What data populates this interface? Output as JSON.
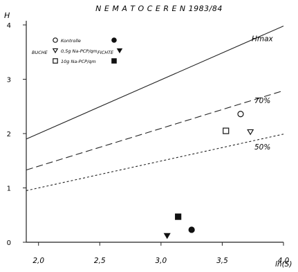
{
  "chart_data": {
    "type": "scatter",
    "title": "N E M A T O C E R E N   1983/84",
    "ylabel": "H",
    "xlabel": "ln(S)",
    "xlim": [
      1.9,
      4.0
    ],
    "ylim": [
      0,
      4.0
    ],
    "x_ticks": [
      2.0,
      2.5,
      3.0,
      3.5,
      4.0
    ],
    "x_tick_labels": [
      "2,0",
      "2,5",
      "3,0",
      "3,5",
      "4,0"
    ],
    "y_ticks": [
      0,
      1,
      2,
      3,
      4
    ],
    "y_tick_labels": [
      "0",
      "1",
      "2",
      "3",
      "4"
    ],
    "grid": false,
    "reference_lines": [
      {
        "name": "Hmax",
        "style": "solid",
        "points": [
          [
            1.9,
            1.9
          ],
          [
            4.0,
            3.98
          ]
        ]
      },
      {
        "name": "70%",
        "style": "dashed",
        "points": [
          [
            1.9,
            1.33
          ],
          [
            4.0,
            2.79
          ]
        ]
      },
      {
        "name": "50%",
        "style": "dotted",
        "points": [
          [
            1.9,
            0.95
          ],
          [
            4.0,
            1.99
          ]
        ]
      }
    ],
    "series": [
      {
        "name": "Kontrolle",
        "group": "BUCHE",
        "marker": "circle-open",
        "points": [
          [
            3.65,
            2.36
          ]
        ]
      },
      {
        "name": "Kontrolle",
        "group": "FICHTE",
        "marker": "circle-filled",
        "points": [
          [
            3.25,
            0.23
          ]
        ]
      },
      {
        "name": "0,5g Na-PCP/qm",
        "group": "BUCHE",
        "marker": "triangle-open",
        "points": [
          [
            3.73,
            2.03
          ]
        ]
      },
      {
        "name": "0,5g Na-PCP/qm",
        "group": "FICHTE",
        "marker": "triangle-filled",
        "points": [
          [
            3.05,
            0.12
          ]
        ]
      },
      {
        "name": "10g Na-PCP/qm",
        "group": "BUCHE",
        "marker": "square-open",
        "points": [
          [
            3.53,
            2.05
          ]
        ]
      },
      {
        "name": "10g Na-PCP/qm",
        "group": "FICHTE",
        "marker": "square-filled",
        "points": [
          [
            3.14,
            0.47
          ]
        ]
      }
    ],
    "legend": {
      "placement": "top-left",
      "rows": [
        {
          "label": "Kontrolle",
          "open_marker": "circle-open",
          "filled_marker": "circle-filled"
        },
        {
          "label": "0,5g Na-PCP/qm",
          "open_marker": "triangle-open",
          "filled_marker": "triangle-filled"
        },
        {
          "label": "10g Na-PCP/qm",
          "open_marker": "square-open",
          "filled_marker": "square-filled"
        }
      ],
      "group_open": "BUCHE",
      "group_filled": "FICHTE"
    }
  }
}
